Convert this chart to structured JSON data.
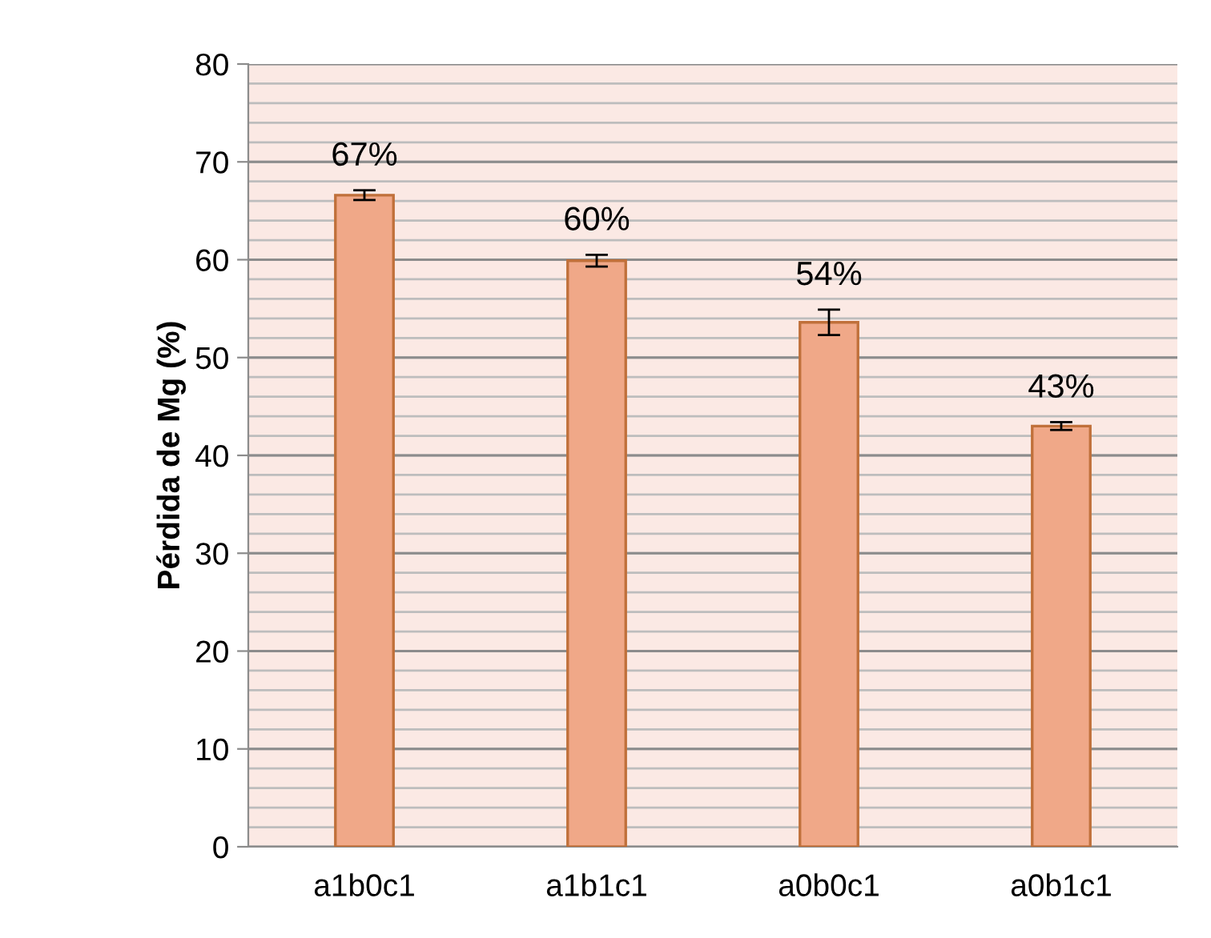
{
  "chart_data": {
    "type": "bar",
    "ylabel": "Pérdida de Mg (%)",
    "categories": [
      "a1b0c1",
      "a1b1c1",
      "a0b0c1",
      "a0b1c1"
    ],
    "values": [
      66.6,
      59.9,
      53.6,
      43.0
    ],
    "errors": [
      0.5,
      0.6,
      1.3,
      0.4
    ],
    "value_labels": [
      "67%",
      "60%",
      "54%",
      "43%"
    ],
    "color": "#f0a888",
    "ylim": [
      0,
      80
    ],
    "yticks": [
      0,
      10,
      20,
      30,
      40,
      50,
      60,
      70,
      80
    ],
    "grid": "y"
  }
}
